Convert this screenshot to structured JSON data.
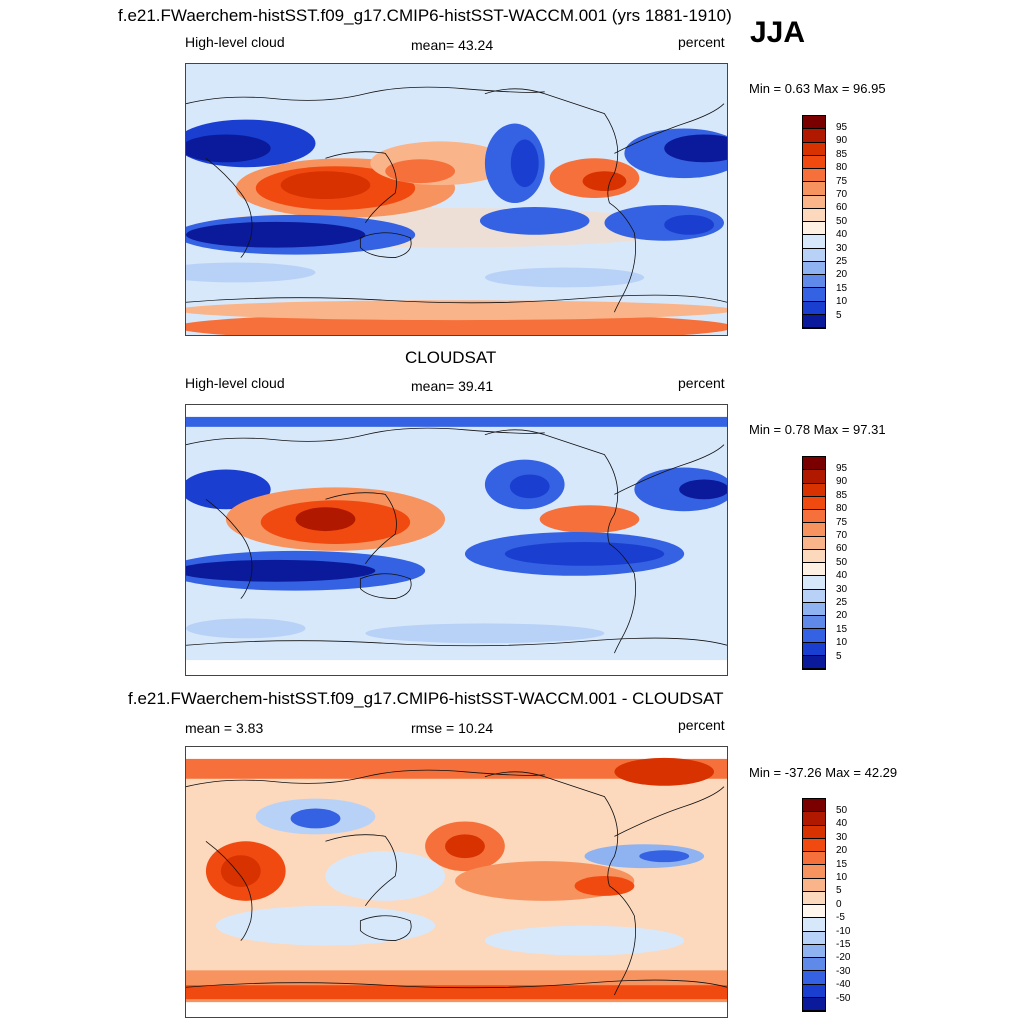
{
  "season": "JJA",
  "panels": [
    {
      "title": "f.e21.FWaerchem-histSST.f09_g17.CMIP6-histSST-WACCM.001 (yrs 1881-1910)",
      "left_label": "High-level cloud",
      "mid_label": "mean=  43.24",
      "units": "percent",
      "minmax": "Min =   0.63 Max =  96.95",
      "levels": [
        "95",
        "90",
        "85",
        "80",
        "75",
        "70",
        "60",
        "50",
        "40",
        "30",
        "25",
        "20",
        "15",
        "10",
        "5"
      ],
      "colors": [
        "#7a0000",
        "#b01800",
        "#d83200",
        "#f04a10",
        "#f5703a",
        "#f7935f",
        "#fab48a",
        "#fcd8bd",
        "#fff0e4",
        "#d8e8fb",
        "#b8d2f7",
        "#8fb2f1",
        "#5f8aea",
        "#3462e2",
        "#1a3fd0",
        "#0a1a9a"
      ]
    },
    {
      "title": "CLOUDSAT",
      "left_label": "High-level cloud",
      "mid_label": "mean=  39.41",
      "units": "percent",
      "minmax": "Min =   0.78 Max =  97.31",
      "levels": [
        "95",
        "90",
        "85",
        "80",
        "75",
        "70",
        "60",
        "50",
        "40",
        "30",
        "25",
        "20",
        "15",
        "10",
        "5"
      ],
      "colors": [
        "#7a0000",
        "#b01800",
        "#d83200",
        "#f04a10",
        "#f5703a",
        "#f7935f",
        "#fab48a",
        "#fcd8bd",
        "#fff0e4",
        "#d8e8fb",
        "#b8d2f7",
        "#8fb2f1",
        "#5f8aea",
        "#3462e2",
        "#1a3fd0",
        "#0a1a9a"
      ]
    },
    {
      "title": "f.e21.FWaerchem-histSST.f09_g17.CMIP6-histSST-WACCM.001 - CLOUDSAT",
      "left_label": "mean =   3.83",
      "mid_label": "rmse =  10.24",
      "units": "percent",
      "minmax": "Min = -37.26 Max =  42.29",
      "levels": [
        "50",
        "40",
        "30",
        "20",
        "15",
        "10",
        "5",
        "0",
        "-5",
        "-10",
        "-15",
        "-20",
        "-30",
        "-40",
        "-50"
      ],
      "colors": [
        "#7a0000",
        "#b01800",
        "#d83200",
        "#f04a10",
        "#f5703a",
        "#f7935f",
        "#fab48a",
        "#fcd8bd",
        "#fff6ee",
        "#d8e8fb",
        "#b8d2f7",
        "#8fb2f1",
        "#5f8aea",
        "#3462e2",
        "#1a3fd0",
        "#0a1a9a"
      ]
    }
  ]
}
